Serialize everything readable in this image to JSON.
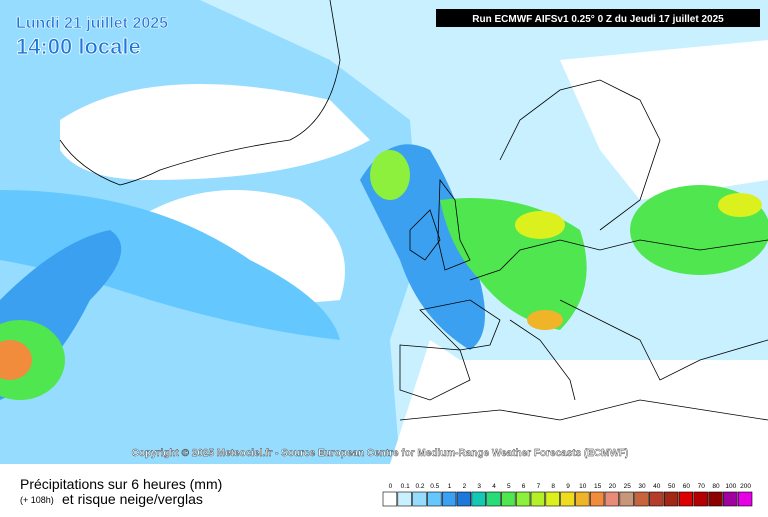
{
  "header": {
    "date": "Lundi 21 juillet 2025",
    "time": "14:00 locale",
    "run": "Run ECMWF AIFSv1 0.25° 0 Z du Jeudi 17 juillet 2025"
  },
  "copyright": "Copyright © 2025 Meteociel.fr - Source European Centre for Medium-Range Weather Forecasts (ECMWF)",
  "footer": {
    "title": "Précipitations sur 6 heures (mm)",
    "lead": "(+ 108h)",
    "subtitle": "et risque neige/verglas"
  },
  "legend": {
    "labels": [
      "0",
      "0.1",
      "0.2",
      "0.5",
      "1",
      "2",
      "3",
      "4",
      "5",
      "6",
      "7",
      "8",
      "9",
      "10",
      "15",
      "20",
      "25",
      "30",
      "40",
      "50",
      "60",
      "70",
      "80",
      "100",
      "200"
    ],
    "colors": [
      "#ffffff",
      "#c8f0ff",
      "#96dcff",
      "#64c8ff",
      "#3ca0f0",
      "#1e78dc",
      "#14c8b4",
      "#28dc78",
      "#50e650",
      "#8cf03c",
      "#b4f028",
      "#dcf01e",
      "#f0dc1e",
      "#f0b428",
      "#f08c3c",
      "#e88c78",
      "#c89678",
      "#c8643c",
      "#b43c28",
      "#a02814",
      "#dc0000",
      "#b40000",
      "#8c0000",
      "#a000a0",
      "#e600e6"
    ]
  }
}
